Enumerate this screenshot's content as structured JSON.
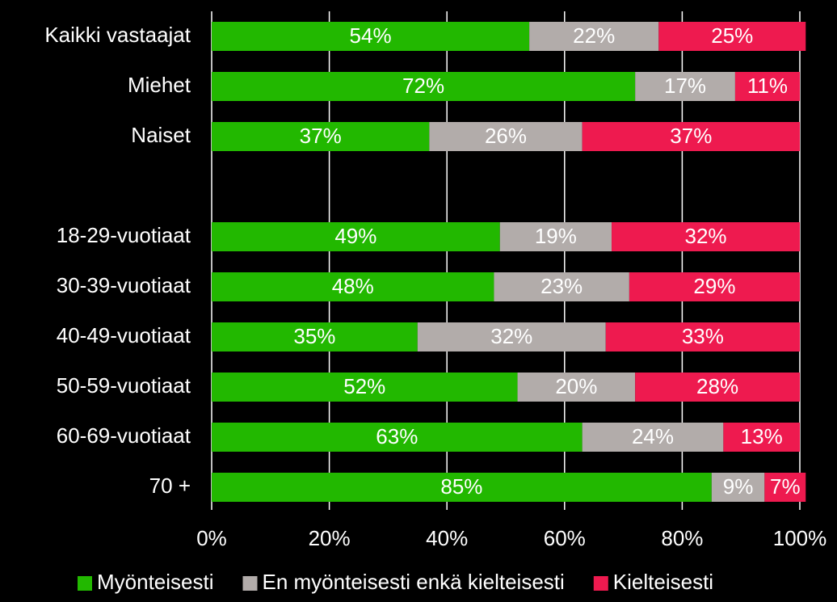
{
  "chart_data": {
    "type": "stacked_bar_horizontal",
    "categories": [
      "Kaikki vastaajat",
      "Miehet",
      "Naiset",
      null,
      "18-29-vuotiaat",
      "30-39-vuotiaat",
      "40-49-vuotiaat",
      "50-59-vuotiaat",
      "60-69-vuotiaat",
      "70 +"
    ],
    "series": [
      {
        "name": "Myönteisesti",
        "color": "#22b800",
        "values": [
          54,
          72,
          37,
          null,
          49,
          48,
          35,
          52,
          63,
          85
        ],
        "value_labels": [
          "54%",
          "72%",
          "37%",
          null,
          "49%",
          "48%",
          "35%",
          "52%",
          "63%",
          "85%"
        ]
      },
      {
        "name": "En myönteisesti enkä kielteisesti",
        "color": "#b2acaa",
        "values": [
          22,
          17,
          26,
          null,
          19,
          23,
          32,
          20,
          24,
          9
        ],
        "value_labels": [
          "22%",
          "17%",
          "26%",
          null,
          "19%",
          "23%",
          "32%",
          "20%",
          "24%",
          "9%"
        ]
      },
      {
        "name": "Kielteisesti",
        "color": "#ee1a4f",
        "values": [
          25,
          11,
          37,
          null,
          32,
          29,
          33,
          28,
          13,
          7
        ],
        "value_labels": [
          "25%",
          "11%",
          "37%",
          null,
          "32%",
          "29%",
          "33%",
          "28%",
          "13%",
          "7%"
        ]
      }
    ],
    "xlim": [
      0,
      100
    ],
    "xticks": [
      {
        "value": 0,
        "label": "0%"
      },
      {
        "value": 20,
        "label": "20%"
      },
      {
        "value": 40,
        "label": "40%"
      },
      {
        "value": 60,
        "label": "60%"
      },
      {
        "value": 80,
        "label": "80%"
      },
      {
        "value": 100,
        "label": "100%"
      }
    ],
    "grid": true,
    "legend": "bottom"
  }
}
